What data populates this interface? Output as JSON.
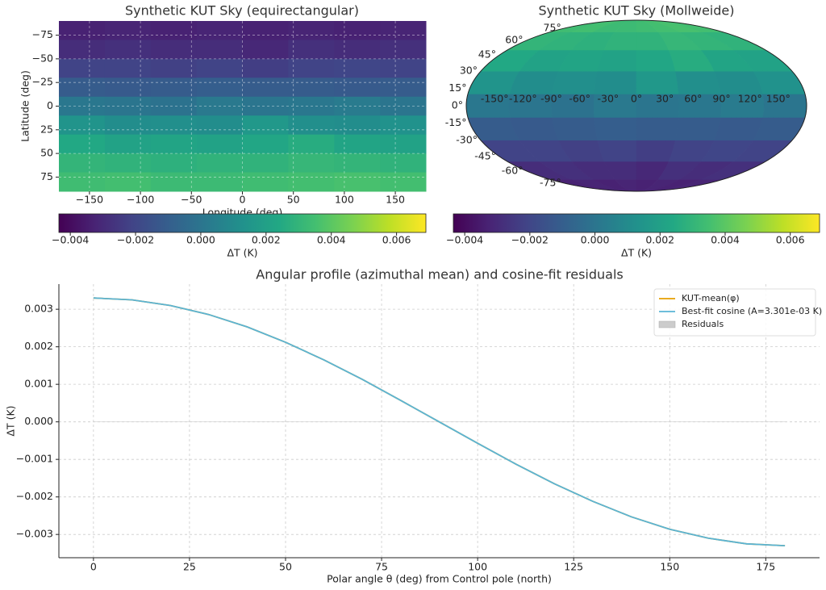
{
  "chart_data": [
    {
      "type": "heatmap",
      "projection": "equirectangular",
      "title": "Synthetic KUT Sky (equirectangular)",
      "x_label": "Longitude (deg)",
      "y_label": "Latitude (deg)",
      "xlim": [
        -180,
        180
      ],
      "ylim": [
        90,
        -90
      ],
      "xticks": [
        {
          "value": -150,
          "label": "−150"
        },
        {
          "value": -100,
          "label": "−100"
        },
        {
          "value": -50,
          "label": "−50"
        },
        0,
        50,
        100,
        150
      ],
      "yticks": [
        {
          "value": -75,
          "label": "−75"
        },
        {
          "value": -50,
          "label": "−50"
        },
        {
          "value": -25,
          "label": "−25"
        },
        0,
        25,
        50,
        75
      ],
      "grid": true,
      "cmap": "viridis",
      "z": [
        [
          -0.0033,
          -0.0032,
          -0.0033,
          -0.0032,
          -0.0033,
          -0.0032,
          -0.0033,
          -0.0032
        ],
        [
          -0.0029,
          -0.0028,
          -0.0029,
          -0.0029,
          -0.0031,
          -0.0028,
          -0.0029,
          -0.0028
        ],
        [
          -0.0021,
          -0.0021,
          -0.0022,
          -0.0021,
          -0.0023,
          -0.0021,
          -0.002,
          -0.0021
        ],
        [
          -0.0011,
          -0.0012,
          -0.0011,
          -0.001,
          -0.0011,
          -0.0011,
          -0.0012,
          -0.0011
        ],
        [
          0.0001,
          0.0,
          -0.0001,
          0.0002,
          0.0,
          0.0001,
          0.0003,
          0.0
        ],
        [
          0.0014,
          0.0011,
          0.0012,
          0.0011,
          0.0016,
          0.0012,
          0.0011,
          0.0013
        ],
        [
          0.0024,
          0.0021,
          0.0022,
          0.0021,
          0.0023,
          0.0026,
          0.0022,
          0.0021
        ],
        [
          0.003,
          0.0029,
          0.0028,
          0.0029,
          0.0029,
          0.0031,
          0.003,
          0.0029
        ],
        [
          0.0034,
          0.0035,
          0.0033,
          0.0033,
          0.0034,
          0.0035,
          0.0036,
          0.0035
        ]
      ],
      "colorbar_label": "ΔT (K)",
      "clim": [
        -0.00435,
        0.0069
      ],
      "colorbar_ticks": [
        {
          "value": -0.004,
          "label": "−0.004"
        },
        {
          "value": -0.002,
          "label": "−0.002"
        },
        {
          "value": 0,
          "label": "0.000"
        },
        0.002,
        0.004,
        0.006
      ]
    },
    {
      "type": "heatmap",
      "projection": "mollweide",
      "title": "Synthetic KUT Sky (Mollweide)",
      "xlim": [
        -180,
        180
      ],
      "ylim": [
        -90,
        90
      ],
      "xticks": [
        {
          "value": -150,
          "label": "-150°"
        },
        {
          "value": -120,
          "label": "-120°"
        },
        {
          "value": -90,
          "label": "-90°"
        },
        {
          "value": -60,
          "label": "-60°"
        },
        {
          "value": -30,
          "label": "-30°"
        },
        {
          "value": 0,
          "label": "0°"
        },
        {
          "value": 30,
          "label": "30°"
        },
        {
          "value": 60,
          "label": "60°"
        },
        {
          "value": 90,
          "label": "90°"
        },
        {
          "value": 120,
          "label": "120°"
        },
        {
          "value": 150,
          "label": "150°"
        }
      ],
      "yticks": [
        {
          "value": 75,
          "label": "75°"
        },
        {
          "value": 60,
          "label": "60°"
        },
        {
          "value": 45,
          "label": "45°"
        },
        {
          "value": 30,
          "label": "30°"
        },
        {
          "value": 15,
          "label": "15°"
        },
        {
          "value": 0,
          "label": "0°"
        },
        {
          "value": -15,
          "label": "-15°"
        },
        {
          "value": -30,
          "label": "-30°"
        },
        {
          "value": -45,
          "label": "-45°"
        },
        {
          "value": -60,
          "label": "-60°"
        },
        {
          "value": -75,
          "label": "-75°"
        }
      ],
      "cmap": "viridis",
      "z": [
        [
          -0.0033,
          -0.0032,
          -0.0033,
          -0.0032,
          -0.0033,
          -0.0032,
          -0.0033,
          -0.0032
        ],
        [
          -0.0029,
          -0.0028,
          -0.0029,
          -0.0029,
          -0.0031,
          -0.0028,
          -0.0029,
          -0.0028
        ],
        [
          -0.0021,
          -0.0021,
          -0.0022,
          -0.0021,
          -0.0023,
          -0.0021,
          -0.002,
          -0.0021
        ],
        [
          -0.0011,
          -0.0012,
          -0.0011,
          -0.001,
          -0.0011,
          -0.0011,
          -0.0012,
          -0.0011
        ],
        [
          0.0001,
          0.0,
          -0.0001,
          0.0002,
          0.0,
          0.0001,
          0.0003,
          0.0
        ],
        [
          0.0014,
          0.0011,
          0.0012,
          0.0011,
          0.0016,
          0.0012,
          0.0011,
          0.0013
        ],
        [
          0.0024,
          0.0021,
          0.0022,
          0.0021,
          0.0023,
          0.0026,
          0.0022,
          0.0021
        ],
        [
          0.003,
          0.0029,
          0.0028,
          0.0029,
          0.0029,
          0.0031,
          0.003,
          0.0029
        ],
        [
          0.0034,
          0.0035,
          0.0033,
          0.0033,
          0.0034,
          0.0035,
          0.0036,
          0.0035
        ]
      ],
      "colorbar_label": "ΔT (K)",
      "clim": [
        -0.00435,
        0.0069
      ],
      "colorbar_ticks": [
        {
          "value": -0.004,
          "label": "−0.004"
        },
        {
          "value": -0.002,
          "label": "−0.002"
        },
        {
          "value": 0,
          "label": "0.000"
        },
        0.002,
        0.004,
        0.006
      ]
    },
    {
      "type": "line",
      "title": "Angular profile (azimuthal mean) and cosine-fit residuals",
      "x_label": "Polar angle θ (deg) from Control pole (north)",
      "y_label": "ΔT (K)",
      "x": [
        0,
        10,
        20,
        30,
        40,
        50,
        60,
        70,
        80,
        90,
        100,
        110,
        120,
        130,
        140,
        150,
        160,
        170,
        180
      ],
      "xlim": [
        -9,
        189
      ],
      "ylim": [
        -0.00362,
        0.00367
      ],
      "xticks": [
        0,
        25,
        50,
        75,
        100,
        125,
        150,
        175
      ],
      "yticks": [
        0.003,
        0.002,
        0.001,
        {
          "value": 0,
          "label": "0.000"
        },
        {
          "value": -0.001,
          "label": "−0.001"
        },
        {
          "value": -0.002,
          "label": "−0.002"
        },
        {
          "value": -0.003,
          "label": "−0.003"
        }
      ],
      "grid": true,
      "legend": "upper right",
      "series": [
        {
          "name": "KUT-mean(φ)",
          "color": "#e69f00",
          "values": [
            0.0033,
            0.00325,
            0.0031,
            0.00286,
            0.00253,
            0.00212,
            0.00165,
            0.00113,
            0.00057,
            0,
            -0.00057,
            -0.00113,
            -0.00165,
            -0.00212,
            -0.00253,
            -0.00286,
            -0.0031,
            -0.00325,
            -0.0033
          ]
        },
        {
          "name": "Best-fit cosine (A=3.301e-03 K)",
          "color": "#5ab4d6",
          "values": [
            0.0033,
            0.00325,
            0.0031,
            0.00286,
            0.00253,
            0.00212,
            0.00165,
            0.00113,
            0.00057,
            0,
            -0.00057,
            -0.00113,
            -0.00165,
            -0.00212,
            -0.00253,
            -0.00286,
            -0.0031,
            -0.00325,
            -0.0033
          ]
        },
        {
          "name": "Residuals",
          "color": "#cccccc",
          "type": "area",
          "values": [
            0,
            0,
            0,
            0,
            0,
            0,
            0,
            0,
            0,
            0,
            0,
            0,
            0,
            0,
            0,
            0,
            0,
            0,
            0
          ]
        }
      ]
    }
  ]
}
